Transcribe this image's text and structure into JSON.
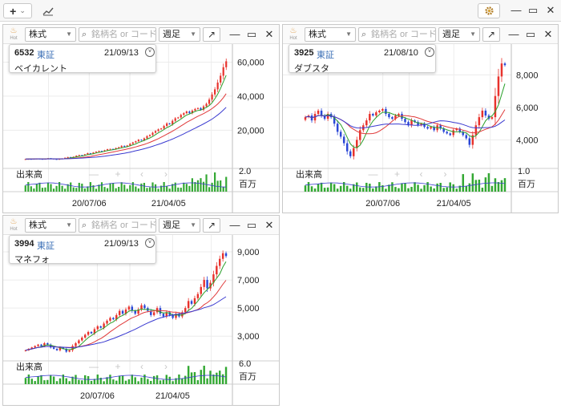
{
  "toolbar": {
    "add_label": "+",
    "add_caret": "⌄",
    "chart_icon": "📈"
  },
  "panels": [
    {
      "code": "6532",
      "market": "東証",
      "date": "21/09/13",
      "name": "ベイカレント",
      "kind": "株式",
      "search_placeholder": "銘柄名 or コード",
      "period": "週足",
      "price_ticks": [
        {
          "label": "60,000",
          "value": 60000
        },
        {
          "label": "40,000",
          "value": 40000
        },
        {
          "label": "20,000",
          "value": 20000
        }
      ],
      "price_range": [
        -2000,
        64000
      ],
      "volume_label": "出来高",
      "volume_max": "2.0",
      "volume_unit": "百万",
      "date_ticks": [
        {
          "label": "20/07/06",
          "pos": 0.32
        },
        {
          "label": "21/04/05",
          "pos": 0.71
        }
      ],
      "close": [
        3000,
        3100,
        3000,
        3200,
        3300,
        3100,
        3000,
        3200,
        3500,
        3300,
        3000,
        2800,
        3100,
        3400,
        3800,
        4200,
        4000,
        4400,
        5000,
        5400,
        5200,
        5800,
        6500,
        6300,
        6900,
        7400,
        7800,
        7500,
        8200,
        8800,
        9000,
        8800,
        9500,
        10000,
        10800,
        10300,
        11000,
        12000,
        12800,
        13500,
        14400,
        14000,
        15200,
        16500,
        17200,
        18500,
        19500,
        20500,
        21000,
        22500,
        24000,
        23500,
        25500,
        27000,
        27500,
        29000,
        30000,
        31000,
        30000,
        31500,
        32500,
        33000,
        32000,
        34000,
        35500,
        38000,
        41000,
        44000,
        48000,
        52000,
        57000,
        60500
      ]
    },
    {
      "code": "3925",
      "market": "東証",
      "date": "21/08/10",
      "name": "ダブスタ",
      "kind": "株式",
      "search_placeholder": "銘柄名 or コード",
      "period": "週足",
      "price_ticks": [
        {
          "label": "8,000",
          "value": 8000
        },
        {
          "label": "6,000",
          "value": 6000
        },
        {
          "label": "4,000",
          "value": 4000
        }
      ],
      "price_range": [
        2300,
        9200
      ],
      "volume_label": "出来高",
      "volume_max": "1.0",
      "volume_unit": "百万",
      "date_ticks": [
        {
          "label": "20/07/06",
          "pos": 0.39
        },
        {
          "label": "21/04/05",
          "pos": 0.74
        }
      ],
      "close": [
        5400,
        5500,
        5200,
        5600,
        5800,
        5500,
        5300,
        5600,
        5400,
        5000,
        4500,
        4200,
        3800,
        3300,
        3000,
        3500,
        4000,
        4600,
        4900,
        5200,
        5600,
        5500,
        5700,
        5800,
        5900,
        5600,
        5400,
        5300,
        5500,
        5600,
        5300,
        5100,
        4900,
        5200,
        5100,
        4900,
        5000,
        4800,
        4700,
        4800,
        4600,
        4900,
        4700,
        4500,
        4400,
        4300,
        4600,
        4700,
        4500,
        4300,
        4100,
        3700,
        4300,
        4900,
        5400,
        5800,
        5500,
        5300,
        5400,
        6700,
        7900,
        8700,
        8600
      ]
    },
    {
      "code": "3994",
      "market": "東証",
      "date": "21/09/13",
      "name": "マネフォ",
      "kind": "株式",
      "search_placeholder": "銘柄名 or コード",
      "period": "週足",
      "price_ticks": [
        {
          "label": "9,000",
          "value": 9000
        },
        {
          "label": "7,000",
          "value": 7000
        },
        {
          "label": "5,000",
          "value": 5000
        },
        {
          "label": "3,000",
          "value": 3000
        }
      ],
      "price_range": [
        1300,
        9400
      ],
      "volume_label": "出来高",
      "volume_max": "6.0",
      "volume_unit": "百万",
      "date_ticks": [
        {
          "label": "20/07/06",
          "pos": 0.36
        },
        {
          "label": "21/04/05",
          "pos": 0.73
        }
      ],
      "close": [
        2000,
        2100,
        2200,
        2300,
        2400,
        2300,
        2500,
        2400,
        2200,
        2100,
        2000,
        2200,
        2100,
        1900,
        2000,
        2300,
        2500,
        2700,
        2900,
        3100,
        3300,
        3200,
        3500,
        3700,
        3600,
        3900,
        4100,
        4300,
        4200,
        4500,
        4800,
        4600,
        4900,
        5100,
        4800,
        4600,
        4900,
        5200,
        5000,
        4800,
        4500,
        4700,
        5000,
        4600,
        4400,
        4700,
        4500,
        4300,
        4600,
        4400,
        4700,
        5000,
        5500,
        5300,
        5700,
        6000,
        6500,
        7000,
        6400,
        6800,
        7400,
        8000,
        8500,
        8900,
        8700
      ]
    }
  ]
}
